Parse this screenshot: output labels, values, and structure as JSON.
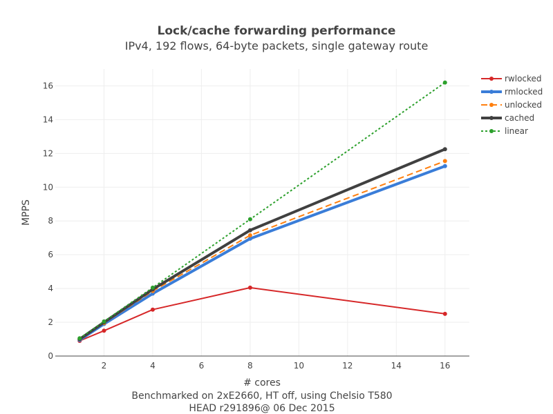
{
  "chart_data": {
    "type": "line",
    "title": "Lock/cache forwarding performance",
    "subtitle": "IPv4, 192 flows, 64-byte packets, single gateway route",
    "xlabel": "# cores",
    "xlabel_notes": [
      "Benchmarked on 2xE2660, HT off, using Chelsio T580",
      "HEAD r291896@ 06 Dec 2015"
    ],
    "ylabel": "MPPS",
    "xlim": [
      0,
      17
    ],
    "ylim": [
      0,
      17
    ],
    "xticks": [
      2,
      4,
      6,
      8,
      10,
      12,
      14,
      16
    ],
    "yticks": [
      0,
      2,
      4,
      6,
      8,
      10,
      12,
      14,
      16
    ],
    "grid": true,
    "legend_position": "top-right",
    "x": [
      1,
      2,
      4,
      8,
      16
    ],
    "series": [
      {
        "name": "rwlocked",
        "values": [
          0.9,
          1.5,
          2.75,
          4.05,
          2.5
        ],
        "color": "#d62728",
        "dash": "solid",
        "width": 2
      },
      {
        "name": "rmlocked",
        "values": [
          0.95,
          1.9,
          3.7,
          6.95,
          11.25
        ],
        "color": "#3a7dd8",
        "dash": "solid",
        "width": 4
      },
      {
        "name": "unlocked",
        "values": [
          1.0,
          1.95,
          3.85,
          7.15,
          11.55
        ],
        "color": "#ff7f0e",
        "dash": "dashed",
        "width": 2
      },
      {
        "name": "cached",
        "values": [
          1.0,
          2.0,
          3.95,
          7.45,
          12.25
        ],
        "color": "#404040",
        "dash": "solid",
        "width": 4
      },
      {
        "name": "linear",
        "values": [
          1.05,
          2.05,
          4.05,
          8.1,
          16.2
        ],
        "color": "#2ca02c",
        "dash": "dotted",
        "width": 2
      }
    ]
  }
}
